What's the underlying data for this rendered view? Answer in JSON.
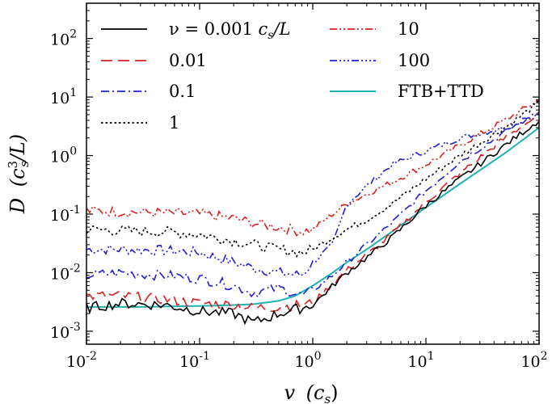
{
  "chart_data": {
    "type": "line",
    "title": "",
    "xlabel": "v (c_s)",
    "ylabel": "D (c_s^3/L)",
    "xscale": "log",
    "yscale": "log",
    "xlim": [
      0.01,
      100
    ],
    "ylim": [
      0.0006,
      400
    ],
    "x_ticks": [
      {
        "value": 0.01,
        "label": "10",
        "exp": "-2"
      },
      {
        "value": 0.1,
        "label": "10",
        "exp": "-1"
      },
      {
        "value": 1,
        "label": "10",
        "exp": "0"
      },
      {
        "value": 10,
        "label": "10",
        "exp": "1"
      },
      {
        "value": 100,
        "label": "10",
        "exp": "2"
      }
    ],
    "y_ticks": [
      {
        "value": 0.001,
        "label": "10",
        "exp": "-3"
      },
      {
        "value": 0.01,
        "label": "10",
        "exp": "-2"
      },
      {
        "value": 0.1,
        "label": "10",
        "exp": "-1"
      },
      {
        "value": 1,
        "label": "10",
        "exp": "0"
      },
      {
        "value": 10,
        "label": "10",
        "exp": "1"
      },
      {
        "value": 100,
        "label": "10",
        "exp": "2"
      }
    ],
    "legend_position": "top",
    "series": [
      {
        "name": "ν = 0.001 c_s/L",
        "color": "#000000",
        "dash": "solid",
        "x": [
          0.01,
          0.02,
          0.05,
          0.1,
          0.2,
          0.3,
          0.5,
          0.8,
          1.0,
          1.5,
          2.0,
          3.0,
          5.0,
          10,
          20,
          50,
          100
        ],
        "y": [
          0.0025,
          0.003,
          0.0028,
          0.0022,
          0.002,
          0.0014,
          0.002,
          0.0025,
          0.0028,
          0.006,
          0.01,
          0.018,
          0.04,
          0.14,
          0.4,
          1.5,
          4.0
        ]
      },
      {
        "name": "0.01",
        "color": "#d62020",
        "dash": "long-dash",
        "x": [
          0.01,
          0.02,
          0.05,
          0.1,
          0.2,
          0.3,
          0.5,
          0.8,
          1.0,
          1.5,
          2.0,
          3.0,
          5.0,
          10,
          20,
          50,
          100
        ],
        "y": [
          0.004,
          0.004,
          0.0035,
          0.003,
          0.0028,
          0.0025,
          0.0026,
          0.0028,
          0.003,
          0.0065,
          0.011,
          0.02,
          0.045,
          0.16,
          0.5,
          2.0,
          5.0
        ]
      },
      {
        "name": "0.1",
        "color": "#1f1fd0",
        "dash": "dash-dot",
        "x": [
          0.01,
          0.02,
          0.05,
          0.1,
          0.2,
          0.3,
          0.5,
          0.8,
          1.0,
          1.5,
          2.0,
          3.0,
          5.0,
          10,
          20,
          50,
          100
        ],
        "y": [
          0.009,
          0.01,
          0.009,
          0.008,
          0.006,
          0.0045,
          0.0055,
          0.004,
          0.005,
          0.009,
          0.015,
          0.03,
          0.07,
          0.25,
          0.8,
          2.5,
          6.0
        ]
      },
      {
        "name": "1",
        "color": "#000000",
        "dash": "dotted",
        "x": [
          0.01,
          0.02,
          0.05,
          0.1,
          0.2,
          0.3,
          0.5,
          0.8,
          1.0,
          1.5,
          2.0,
          3.0,
          5.0,
          10,
          20,
          50,
          100
        ],
        "y": [
          0.055,
          0.052,
          0.05,
          0.045,
          0.035,
          0.03,
          0.025,
          0.022,
          0.025,
          0.04,
          0.055,
          0.08,
          0.15,
          0.4,
          1.0,
          3.0,
          8.0
        ]
      },
      {
        "name": "10",
        "color": "#d62020",
        "dash": "dash-dot-dot",
        "x": [
          0.01,
          0.02,
          0.05,
          0.1,
          0.2,
          0.3,
          0.5,
          0.8,
          1.0,
          1.5,
          2.0,
          3.0,
          5.0,
          10,
          20,
          50,
          100
        ],
        "y": [
          0.115,
          0.11,
          0.105,
          0.1,
          0.085,
          0.07,
          0.06,
          0.05,
          0.055,
          0.1,
          0.15,
          0.22,
          0.35,
          0.7,
          1.5,
          4.0,
          9.0
        ]
      },
      {
        "name": "100",
        "color": "#1f1fd0",
        "dash": "dash-dot-dot-dot",
        "x": [
          0.01,
          0.02,
          0.05,
          0.1,
          0.2,
          0.3,
          0.5,
          0.8,
          1.0,
          1.5,
          2.0,
          3.0,
          5.0,
          10,
          20,
          50,
          100
        ],
        "y": [
          0.025,
          0.025,
          0.024,
          0.022,
          0.015,
          0.012,
          0.01,
          0.009,
          0.015,
          0.03,
          0.15,
          0.3,
          0.7,
          1.2,
          2.0,
          3.0,
          5.0
        ]
      },
      {
        "name": "FTB+TTD",
        "color": "#1fb2b2",
        "dash": "solid",
        "x": [
          0.01,
          0.03,
          0.1,
          0.2,
          0.3,
          0.5,
          0.7,
          1.0,
          1.5,
          2.0,
          3.0,
          5.0,
          10,
          20,
          50,
          100
        ],
        "y": [
          0.0026,
          0.0026,
          0.0027,
          0.0028,
          0.0029,
          0.0033,
          0.004,
          0.006,
          0.01,
          0.015,
          0.025,
          0.05,
          0.13,
          0.33,
          1.1,
          3.0
        ]
      }
    ]
  },
  "legend": {
    "entries": [
      {
        "prefix": "ν = 0.001 ",
        "italic_part": "c",
        "sub": "s",
        "suffix": "/L"
      },
      {
        "text": "0.01"
      },
      {
        "text": "0.1"
      },
      {
        "text": "1"
      },
      {
        "text": "10"
      },
      {
        "text": "100"
      },
      {
        "text": "FTB+TTD"
      }
    ]
  },
  "axis_titles": {
    "x_main": "v",
    "x_unit": "(c",
    "x_unit_sub": "s",
    "x_unit_close": ")",
    "y_main": "D",
    "y_unit": "(c",
    "y_unit_sup": "3",
    "y_unit_sub": "s",
    "y_unit_close": "/L)"
  }
}
